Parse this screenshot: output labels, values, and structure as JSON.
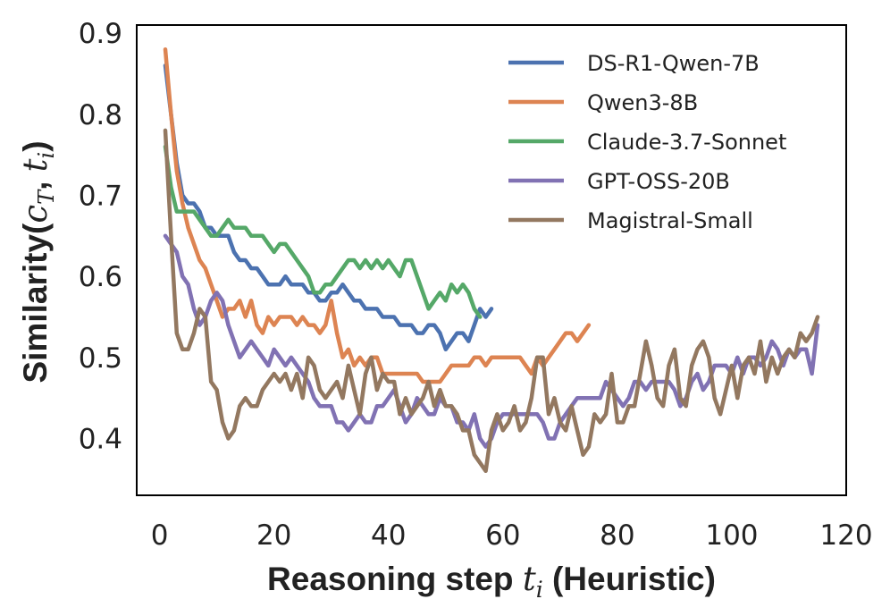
{
  "chart_data": {
    "type": "line",
    "title": "",
    "xlabel_main": "Reasoning step ",
    "xlabel_var": "t",
    "xlabel_sub": "i",
    "xlabel_suffix": " (Heuristic)",
    "ylabel_main": "Similarity(",
    "ylabel_c": "c",
    "ylabel_c_sub": "T",
    "ylabel_sep": ", ",
    "ylabel_t": "t",
    "ylabel_t_sub": "i",
    "ylabel_close": ")",
    "xlim": [
      -4,
      120
    ],
    "ylim": [
      0.33,
      0.91
    ],
    "xticks": [
      0,
      20,
      40,
      60,
      80,
      100,
      120
    ],
    "xtick_labels": [
      "0",
      "20",
      "40",
      "60",
      "80",
      "100",
      "120"
    ],
    "yticks": [
      0.4,
      0.5,
      0.6,
      0.7,
      0.8,
      0.9
    ],
    "ytick_labels": [
      "0.4",
      "0.5",
      "0.6",
      "0.7",
      "0.8",
      "0.9"
    ],
    "grid": false,
    "legend_position": "top-right",
    "series": [
      {
        "name": "DS-R1-Qwen-7B",
        "color": "#4c72b0",
        "x": [
          1,
          2,
          3,
          4,
          5,
          6,
          7,
          8,
          9,
          10,
          11,
          12,
          13,
          14,
          15,
          16,
          17,
          18,
          19,
          20,
          21,
          22,
          23,
          24,
          25,
          26,
          27,
          28,
          29,
          30,
          31,
          32,
          33,
          34,
          35,
          36,
          37,
          38,
          39,
          40,
          41,
          42,
          43,
          44,
          45,
          46,
          47,
          48,
          49,
          50,
          51,
          52,
          53,
          54,
          55,
          56,
          57,
          58
        ],
        "values": [
          0.86,
          0.8,
          0.74,
          0.7,
          0.69,
          0.69,
          0.68,
          0.66,
          0.66,
          0.65,
          0.65,
          0.65,
          0.63,
          0.62,
          0.62,
          0.61,
          0.61,
          0.6,
          0.59,
          0.59,
          0.59,
          0.6,
          0.59,
          0.59,
          0.59,
          0.58,
          0.58,
          0.57,
          0.57,
          0.58,
          0.58,
          0.59,
          0.58,
          0.57,
          0.57,
          0.56,
          0.56,
          0.56,
          0.55,
          0.55,
          0.55,
          0.54,
          0.54,
          0.54,
          0.53,
          0.53,
          0.54,
          0.54,
          0.53,
          0.51,
          0.52,
          0.53,
          0.53,
          0.52,
          0.54,
          0.56,
          0.55,
          0.56
        ]
      },
      {
        "name": "Qwen3-8B",
        "color": "#dd8452",
        "x": [
          1,
          2,
          3,
          4,
          5,
          6,
          7,
          8,
          9,
          10,
          11,
          12,
          13,
          14,
          15,
          16,
          17,
          18,
          19,
          20,
          21,
          22,
          23,
          24,
          25,
          26,
          27,
          28,
          29,
          30,
          31,
          32,
          33,
          34,
          35,
          36,
          37,
          38,
          39,
          40,
          41,
          42,
          43,
          44,
          45,
          46,
          47,
          48,
          49,
          50,
          51,
          52,
          53,
          54,
          55,
          56,
          57,
          58,
          59,
          60,
          61,
          62,
          63,
          64,
          65,
          66,
          67,
          68,
          69,
          70,
          71,
          72,
          73,
          74,
          75
        ],
        "values": [
          0.88,
          0.8,
          0.73,
          0.69,
          0.66,
          0.64,
          0.62,
          0.61,
          0.59,
          0.57,
          0.55,
          0.56,
          0.56,
          0.57,
          0.55,
          0.57,
          0.54,
          0.53,
          0.55,
          0.54,
          0.55,
          0.55,
          0.55,
          0.54,
          0.55,
          0.54,
          0.54,
          0.53,
          0.54,
          0.57,
          0.53,
          0.5,
          0.51,
          0.49,
          0.5,
          0.49,
          0.5,
          0.5,
          0.48,
          0.48,
          0.48,
          0.48,
          0.48,
          0.48,
          0.48,
          0.47,
          0.47,
          0.47,
          0.47,
          0.48,
          0.49,
          0.49,
          0.49,
          0.49,
          0.5,
          0.5,
          0.49,
          0.5,
          0.5,
          0.5,
          0.5,
          0.5,
          0.5,
          0.49,
          0.48,
          0.5,
          0.49,
          0.5,
          0.51,
          0.52,
          0.53,
          0.53,
          0.52,
          0.53,
          0.54
        ]
      },
      {
        "name": "Claude-3.7-Sonnet",
        "color": "#55a868",
        "x": [
          1,
          2,
          3,
          4,
          5,
          6,
          7,
          8,
          9,
          10,
          11,
          12,
          13,
          14,
          15,
          16,
          17,
          18,
          19,
          20,
          21,
          22,
          23,
          24,
          25,
          26,
          27,
          28,
          29,
          30,
          31,
          32,
          33,
          34,
          35,
          36,
          37,
          38,
          39,
          40,
          41,
          42,
          43,
          44,
          45,
          46,
          47,
          48,
          49,
          50,
          51,
          52,
          53,
          54,
          55,
          56
        ],
        "values": [
          0.76,
          0.71,
          0.68,
          0.68,
          0.68,
          0.68,
          0.67,
          0.66,
          0.65,
          0.65,
          0.66,
          0.67,
          0.66,
          0.66,
          0.66,
          0.65,
          0.65,
          0.65,
          0.64,
          0.63,
          0.64,
          0.64,
          0.63,
          0.62,
          0.61,
          0.6,
          0.58,
          0.58,
          0.59,
          0.59,
          0.6,
          0.61,
          0.62,
          0.62,
          0.61,
          0.62,
          0.61,
          0.62,
          0.61,
          0.62,
          0.61,
          0.6,
          0.62,
          0.62,
          0.6,
          0.58,
          0.56,
          0.57,
          0.58,
          0.57,
          0.59,
          0.58,
          0.59,
          0.58,
          0.56,
          0.55
        ]
      },
      {
        "name": "GPT-OSS-20B",
        "color": "#8172b3",
        "x": [
          1,
          2,
          3,
          4,
          5,
          6,
          7,
          8,
          9,
          10,
          11,
          12,
          13,
          14,
          15,
          16,
          17,
          18,
          19,
          20,
          21,
          22,
          23,
          24,
          25,
          26,
          27,
          28,
          29,
          30,
          31,
          32,
          33,
          34,
          35,
          36,
          37,
          38,
          39,
          40,
          41,
          42,
          43,
          44,
          45,
          46,
          47,
          48,
          49,
          50,
          51,
          52,
          53,
          54,
          55,
          56,
          57,
          58,
          59,
          60,
          61,
          62,
          63,
          64,
          65,
          66,
          67,
          68,
          69,
          70,
          71,
          72,
          73,
          74,
          75,
          76,
          77,
          78,
          79,
          80,
          81,
          82,
          83,
          84,
          85,
          86,
          87,
          88,
          89,
          90,
          91,
          92,
          93,
          94,
          95,
          96,
          97,
          98,
          99,
          100,
          101,
          102,
          103,
          104,
          105,
          106,
          107,
          108,
          109,
          110,
          111,
          112,
          113,
          114,
          115
        ],
        "values": [
          0.65,
          0.64,
          0.63,
          0.6,
          0.59,
          0.56,
          0.54,
          0.55,
          0.57,
          0.58,
          0.57,
          0.54,
          0.52,
          0.5,
          0.51,
          0.52,
          0.51,
          0.5,
          0.49,
          0.51,
          0.5,
          0.49,
          0.5,
          0.49,
          0.48,
          0.47,
          0.45,
          0.44,
          0.44,
          0.44,
          0.42,
          0.42,
          0.41,
          0.42,
          0.43,
          0.42,
          0.42,
          0.44,
          0.44,
          0.45,
          0.46,
          0.44,
          0.42,
          0.43,
          0.45,
          0.44,
          0.43,
          0.43,
          0.45,
          0.44,
          0.44,
          0.42,
          0.42,
          0.41,
          0.43,
          0.4,
          0.39,
          0.4,
          0.42,
          0.43,
          0.43,
          0.43,
          0.43,
          0.43,
          0.43,
          0.43,
          0.42,
          0.4,
          0.4,
          0.42,
          0.43,
          0.44,
          0.45,
          0.45,
          0.45,
          0.45,
          0.45,
          0.47,
          0.46,
          0.45,
          0.44,
          0.45,
          0.47,
          0.47,
          0.46,
          0.47,
          0.47,
          0.47,
          0.47,
          0.46,
          0.44,
          0.45,
          0.47,
          0.48,
          0.46,
          0.47,
          0.49,
          0.49,
          0.49,
          0.48,
          0.5,
          0.48,
          0.5,
          0.5,
          0.49,
          0.5,
          0.52,
          0.51,
          0.49,
          0.51,
          0.5,
          0.51,
          0.51,
          0.48,
          0.54
        ]
      },
      {
        "name": "Magistral-Small",
        "color": "#937860",
        "x": [
          1,
          2,
          3,
          4,
          5,
          6,
          7,
          8,
          9,
          10,
          11,
          12,
          13,
          14,
          15,
          16,
          17,
          18,
          19,
          20,
          21,
          22,
          23,
          24,
          25,
          26,
          27,
          28,
          29,
          30,
          31,
          32,
          33,
          34,
          35,
          36,
          37,
          38,
          39,
          40,
          41,
          42,
          43,
          44,
          45,
          46,
          47,
          48,
          49,
          50,
          51,
          52,
          53,
          54,
          55,
          56,
          57,
          58,
          59,
          60,
          61,
          62,
          63,
          64,
          65,
          66,
          67,
          68,
          69,
          70,
          71,
          72,
          73,
          74,
          75,
          76,
          77,
          78,
          79,
          80,
          81,
          82,
          83,
          84,
          85,
          86,
          87,
          88,
          89,
          90,
          91,
          92,
          93,
          94,
          95,
          96,
          97,
          98,
          99,
          100,
          101,
          102,
          103,
          104,
          105,
          106,
          107,
          108,
          109,
          110,
          111,
          112,
          113,
          114,
          115
        ],
        "values": [
          0.78,
          0.65,
          0.53,
          0.51,
          0.51,
          0.53,
          0.56,
          0.55,
          0.47,
          0.46,
          0.42,
          0.4,
          0.41,
          0.44,
          0.45,
          0.44,
          0.44,
          0.46,
          0.47,
          0.48,
          0.47,
          0.48,
          0.46,
          0.48,
          0.45,
          0.5,
          0.49,
          0.46,
          0.45,
          0.46,
          0.47,
          0.45,
          0.49,
          0.46,
          0.43,
          0.48,
          0.5,
          0.46,
          0.48,
          0.47,
          0.47,
          0.43,
          0.45,
          0.43,
          0.44,
          0.45,
          0.47,
          0.44,
          0.46,
          0.44,
          0.44,
          0.43,
          0.41,
          0.41,
          0.38,
          0.37,
          0.36,
          0.41,
          0.43,
          0.41,
          0.42,
          0.44,
          0.41,
          0.42,
          0.45,
          0.5,
          0.5,
          0.43,
          0.45,
          0.42,
          0.41,
          0.44,
          0.41,
          0.38,
          0.39,
          0.43,
          0.42,
          0.43,
          0.48,
          0.42,
          0.42,
          0.44,
          0.44,
          0.48,
          0.52,
          0.49,
          0.45,
          0.44,
          0.49,
          0.51,
          0.45,
          0.44,
          0.49,
          0.51,
          0.52,
          0.5,
          0.45,
          0.43,
          0.46,
          0.49,
          0.45,
          0.49,
          0.5,
          0.48,
          0.52,
          0.47,
          0.5,
          0.48,
          0.5,
          0.51,
          0.5,
          0.53,
          0.52,
          0.53,
          0.55
        ]
      }
    ]
  }
}
